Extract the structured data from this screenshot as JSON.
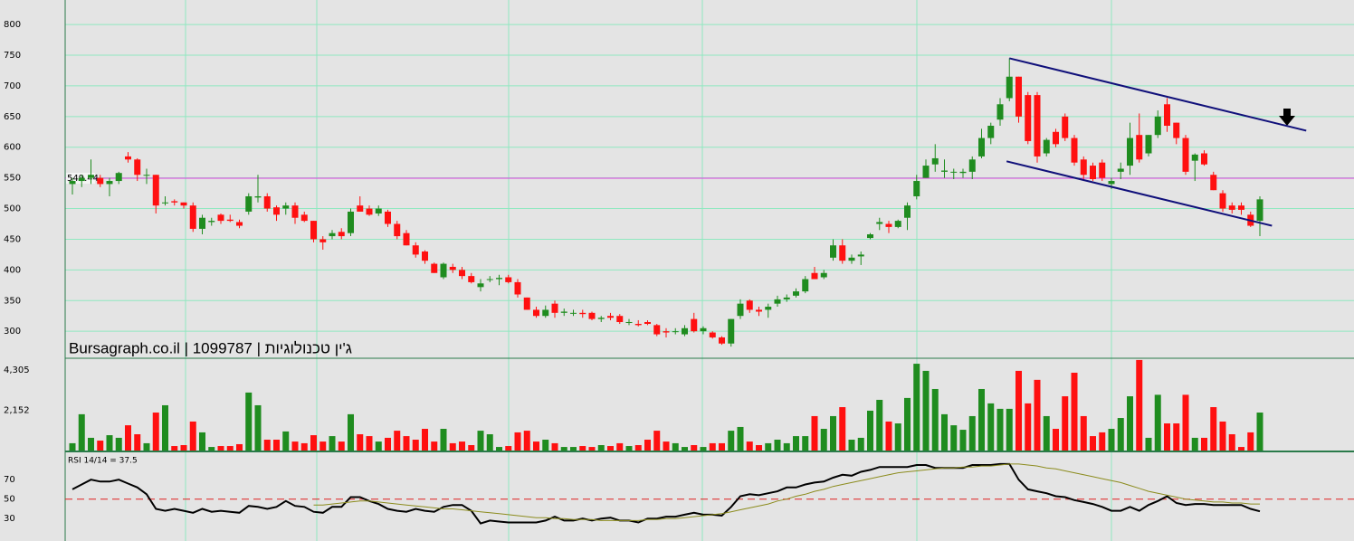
{
  "chart_data": [
    {
      "type": "candlestick",
      "title": "Bursagraph.co.il | 1099787 | ג'ין טכנולוגיות",
      "open": [
        540,
        545,
        550,
        550,
        540,
        545,
        585,
        580,
        555,
        555,
        510,
        512,
        510,
        505,
        467,
        478,
        490,
        482,
        478,
        495,
        518,
        520,
        502,
        500,
        505,
        490,
        480,
        450,
        455,
        462,
        460,
        505,
        500,
        492,
        495,
        475,
        460,
        440,
        430,
        410,
        388,
        405,
        400,
        390,
        372,
        385,
        385,
        388,
        380,
        355,
        335,
        325,
        345,
        330,
        330,
        330,
        330,
        320,
        325,
        325,
        315,
        312,
        315,
        310,
        300,
        300,
        295,
        320,
        300,
        298,
        290,
        280,
        325,
        350,
        335,
        335,
        345,
        352,
        358,
        365,
        395,
        388,
        420,
        440,
        415,
        422,
        452,
        475,
        475,
        470,
        485,
        520,
        550,
        572,
        560,
        560,
        558,
        560,
        585,
        615,
        645,
        680,
        715,
        685,
        685,
        590,
        625,
        650,
        615,
        580,
        570,
        575,
        540,
        560,
        570,
        620,
        590,
        620,
        670,
        640,
        615,
        578,
        590,
        555,
        525,
        505,
        505,
        490,
        480
      ],
      "high": [
        550,
        555,
        580,
        555,
        550,
        560,
        592,
        582,
        565,
        555,
        520,
        515,
        510,
        510,
        490,
        485,
        492,
        490,
        482,
        525,
        555,
        525,
        505,
        510,
        510,
        495,
        480,
        455,
        465,
        468,
        500,
        520,
        505,
        505,
        498,
        480,
        465,
        445,
        432,
        412,
        412,
        410,
        405,
        395,
        385,
        390,
        392,
        392,
        385,
        355,
        340,
        342,
        350,
        337,
        335,
        335,
        332,
        325,
        330,
        328,
        320,
        318,
        318,
        312,
        305,
        305,
        310,
        330,
        308,
        300,
        292,
        320,
        352,
        352,
        340,
        345,
        358,
        360,
        370,
        390,
        405,
        400,
        450,
        450,
        425,
        430,
        460,
        485,
        480,
        482,
        510,
        555,
        580,
        605,
        580,
        565,
        565,
        585,
        630,
        640,
        680,
        745,
        715,
        690,
        690,
        615,
        630,
        655,
        620,
        585,
        575,
        580,
        550,
        575,
        640,
        655,
        620,
        660,
        680,
        640,
        620,
        590,
        595,
        560,
        530,
        510,
        510,
        495,
        520
      ],
      "low": [
        523,
        535,
        540,
        535,
        520,
        540,
        575,
        545,
        540,
        492,
        505,
        505,
        500,
        462,
        458,
        472,
        475,
        478,
        468,
        490,
        510,
        495,
        480,
        490,
        475,
        478,
        445,
        433,
        450,
        450,
        455,
        495,
        488,
        488,
        470,
        450,
        440,
        420,
        410,
        395,
        385,
        395,
        385,
        378,
        365,
        380,
        375,
        378,
        355,
        335,
        322,
        322,
        322,
        325,
        325,
        322,
        318,
        315,
        318,
        312,
        310,
        308,
        310,
        292,
        290,
        295,
        292,
        298,
        295,
        288,
        278,
        275,
        320,
        330,
        325,
        322,
        340,
        348,
        355,
        362,
        385,
        385,
        415,
        410,
        410,
        408,
        450,
        465,
        460,
        468,
        465,
        515,
        550,
        560,
        550,
        548,
        550,
        548,
        582,
        605,
        635,
        675,
        640,
        605,
        575,
        585,
        600,
        610,
        570,
        545,
        545,
        545,
        532,
        548,
        555,
        575,
        585,
        615,
        625,
        605,
        555,
        545,
        570,
        530,
        495,
        492,
        490,
        470,
        455
      ],
      "close": [
        545,
        550,
        555,
        540,
        545,
        558,
        580,
        555,
        555,
        505,
        510,
        510,
        505,
        467,
        485,
        480,
        480,
        480,
        472,
        520,
        520,
        500,
        490,
        505,
        485,
        480,
        450,
        445,
        460,
        455,
        495,
        495,
        490,
        500,
        475,
        455,
        440,
        425,
        415,
        395,
        410,
        400,
        390,
        380,
        378,
        385,
        387,
        380,
        360,
        335,
        325,
        335,
        330,
        332,
        330,
        328,
        320,
        322,
        322,
        315,
        315,
        310,
        312,
        295,
        298,
        300,
        305,
        300,
        305,
        290,
        280,
        320,
        345,
        335,
        332,
        340,
        352,
        355,
        365,
        385,
        385,
        395,
        440,
        415,
        420,
        425,
        458,
        478,
        470,
        480,
        505,
        545,
        570,
        582,
        562,
        560,
        560,
        580,
        615,
        635,
        670,
        715,
        650,
        610,
        585,
        612,
        605,
        615,
        575,
        555,
        548,
        550,
        545,
        565,
        615,
        580,
        620,
        650,
        635,
        615,
        560,
        588,
        572,
        530,
        500,
        498,
        498,
        472,
        515
      ],
      "up_color": "#1f8c1f",
      "down_color": "#ff1010",
      "ylim": [
        256,
        840
      ],
      "yticks": [
        300,
        350,
        400,
        450,
        500,
        550,
        600,
        650,
        700,
        750,
        800
      ],
      "grid": true,
      "hline": 549.44,
      "hline_color": "#e040e0",
      "trendlines": [
        {
          "color": "#10107a",
          "start": [
            101,
            745
          ],
          "end": [
            133,
            627
          ]
        },
        {
          "color": "#10107a",
          "start": [
            100.7,
            577
          ],
          "end": [
            129.3,
            472
          ]
        }
      ]
    },
    {
      "type": "bar",
      "values": [
        390,
        1940,
        680,
        530,
        820,
        680,
        1350,
        870,
        390,
        2030,
        2420,
        240,
        290,
        1550,
        970,
        190,
        240,
        240,
        340,
        3100,
        2420,
        580,
        580,
        1020,
        480,
        390,
        820,
        480,
        770,
        480,
        1940,
        870,
        770,
        480,
        680,
        1060,
        770,
        580,
        1160,
        480,
        1160,
        390,
        480,
        290,
        1060,
        870,
        190,
        240,
        970,
        1060,
        480,
        580,
        390,
        190,
        190,
        240,
        190,
        290,
        240,
        390,
        240,
        290,
        580,
        1060,
        480,
        390,
        190,
        290,
        190,
        390,
        390,
        1060,
        1260,
        480,
        290,
        390,
        580,
        390,
        770,
        770,
        1840,
        1160,
        1840,
        2320,
        580,
        680,
        2130,
        2710,
        1550,
        1450,
        2810,
        4640,
        4260,
        3290,
        1940,
        1350,
        1110,
        1840,
        3290,
        2520,
        2230,
        2230,
        4260,
        2520,
        3780,
        1840,
        1160,
        2900,
        4160,
        1840,
        770,
        970,
        1160,
        1740,
        2900,
        4840,
        680,
        2980,
        1450,
        1450,
        2980,
        680,
        680,
        2320,
        1550,
        870,
        190,
        970,
        2030
      ],
      "up_color": "#1f8c1f",
      "down_color": "#ff1010",
      "ylim": [
        0,
        4885
      ],
      "yticks": [
        {
          "value": 2152,
          "label": "2,152"
        },
        {
          "value": 4305,
          "label": "4,305"
        }
      ]
    },
    {
      "type": "line",
      "title": "RSI 14/14 = 37.5",
      "series": [
        {
          "color": "#000000",
          "values": [
            60,
            65,
            70,
            68,
            68,
            70,
            66,
            62,
            55,
            40,
            38,
            40,
            38,
            36,
            40,
            37,
            38,
            37,
            36,
            43,
            42,
            40,
            42,
            48,
            43,
            42,
            37,
            36,
            42,
            42,
            52,
            52,
            48,
            45,
            40,
            38,
            37,
            40,
            38,
            37,
            42,
            44,
            44,
            38,
            25,
            28,
            27,
            26,
            26,
            26,
            26,
            28,
            32,
            28,
            28,
            30,
            28,
            30,
            31,
            28,
            28,
            26,
            30,
            30,
            32,
            32,
            34,
            36,
            34,
            34,
            33,
            42,
            53,
            55,
            54,
            56,
            58,
            62,
            62,
            65,
            67,
            68,
            72,
            75,
            74,
            78,
            80,
            83,
            83,
            83,
            83,
            85,
            85,
            82,
            82,
            82,
            82,
            85,
            85,
            85,
            86,
            86,
            70,
            60,
            58,
            56,
            53,
            52,
            49,
            47,
            45,
            42,
            38,
            38,
            42,
            38,
            44,
            48,
            53,
            46,
            44,
            45,
            45,
            44,
            44,
            44,
            44,
            40,
            37.5
          ]
        },
        {
          "color": "#8c8c1e",
          "values": [
            null,
            null,
            null,
            null,
            null,
            null,
            null,
            null,
            null,
            null,
            null,
            null,
            null,
            null,
            null,
            null,
            null,
            null,
            null,
            null,
            null,
            null,
            null,
            null,
            null,
            null,
            44,
            44,
            45,
            46,
            47,
            48,
            48,
            47,
            46,
            45,
            44,
            43,
            42,
            41,
            40,
            40,
            39,
            38,
            37,
            36,
            35,
            34,
            33,
            32,
            31,
            31,
            30,
            30,
            29,
            29,
            29,
            28,
            28,
            28,
            28,
            28,
            29,
            29,
            30,
            30,
            31,
            32,
            33,
            34,
            35,
            37,
            39,
            41,
            43,
            45,
            48,
            50,
            53,
            55,
            58,
            60,
            63,
            65,
            67,
            69,
            71,
            73,
            75,
            77,
            78,
            79,
            80,
            81,
            82,
            82,
            83,
            83,
            84,
            84,
            85,
            86,
            86,
            85,
            84,
            82,
            81,
            79,
            77,
            75,
            73,
            71,
            69,
            67,
            64,
            61,
            58,
            56,
            54,
            52,
            50,
            49,
            48,
            47,
            47,
            46,
            46,
            45,
            45
          ]
        }
      ],
      "ylim": [
        7,
        98
      ],
      "yticks": [
        30,
        50,
        70
      ],
      "hline": 50,
      "hline_color": "#e02020"
    }
  ]
}
